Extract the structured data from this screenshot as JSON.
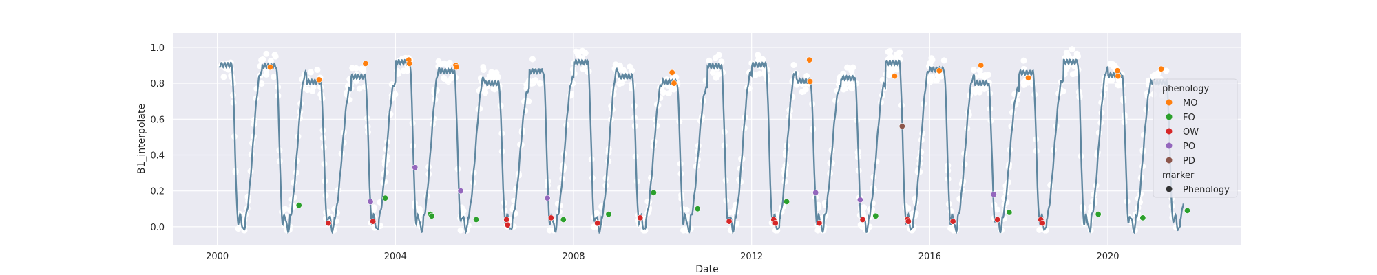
{
  "chart_data": {
    "type": "scatter",
    "title": "",
    "xlabel": "Date",
    "ylabel": "B1_interpolate",
    "xlim": [
      "1999-01-01",
      "2023-01-01"
    ],
    "ylim": [
      -0.1,
      1.08
    ],
    "grid": true,
    "legend_placement": "center-right",
    "x_ticks": [
      "2000",
      "2004",
      "2008",
      "2012",
      "2016",
      "2020"
    ],
    "x_tick_dates": [
      "2000-01-01",
      "2004-01-01",
      "2008-01-01",
      "2012-01-01",
      "2016-01-01",
      "2020-01-01"
    ],
    "y_ticks": [
      "0.0",
      "0.2",
      "0.4",
      "0.6",
      "0.8",
      "1.0"
    ],
    "y_tick_values": [
      0.0,
      0.2,
      0.4,
      0.6,
      0.8,
      1.0
    ],
    "colors": {
      "background": "#eaeaf2",
      "grid": "#ffffff",
      "line": "#5f87a0",
      "raw_points": "#ffffff",
      "MO": "#ff7f0e",
      "FO": "#2ca02c",
      "OW": "#d62728",
      "PO": "#9467bd",
      "PD": "#8c564b"
    },
    "legend": {
      "hue_title": "phenology",
      "hue_entries": [
        "MO",
        "FO",
        "OW",
        "PO",
        "PD"
      ],
      "marker_title": "marker",
      "marker_entries": [
        "Phenology"
      ]
    },
    "series": [
      {
        "name": "MO",
        "points": [
          [
            "2001-03-10",
            0.89
          ],
          [
            "2002-04-15",
            0.82
          ],
          [
            "2003-05-01",
            0.91
          ],
          [
            "2004-04-20",
            0.93
          ],
          [
            "2004-04-25",
            0.91
          ],
          [
            "2005-05-10",
            0.9
          ],
          [
            "2005-05-15",
            0.89
          ],
          [
            "2010-03-20",
            0.86
          ],
          [
            "2010-04-05",
            0.8
          ],
          [
            "2013-04-20",
            0.93
          ],
          [
            "2013-04-25",
            0.81
          ],
          [
            "2015-03-20",
            0.84
          ],
          [
            "2016-03-20",
            0.87
          ],
          [
            "2017-02-25",
            0.9
          ],
          [
            "2018-03-20",
            0.83
          ],
          [
            "2020-03-20",
            0.87
          ],
          [
            "2020-03-25",
            0.84
          ],
          [
            "2021-03-15",
            0.88
          ]
        ]
      },
      {
        "name": "FO",
        "points": [
          [
            "2001-11-01",
            0.12
          ],
          [
            "2003-10-10",
            0.16
          ],
          [
            "2004-10-15",
            0.07
          ],
          [
            "2004-10-25",
            0.06
          ],
          [
            "2005-10-25",
            0.04
          ],
          [
            "2007-10-10",
            0.04
          ],
          [
            "2008-10-15",
            0.07
          ],
          [
            "2009-10-20",
            0.19
          ],
          [
            "2010-10-15",
            0.1
          ],
          [
            "2012-10-15",
            0.14
          ],
          [
            "2014-10-15",
            0.06
          ],
          [
            "2017-10-15",
            0.08
          ],
          [
            "2019-10-15",
            0.07
          ],
          [
            "2020-10-15",
            0.05
          ],
          [
            "2021-10-15",
            0.09
          ]
        ]
      },
      {
        "name": "OW",
        "points": [
          [
            "2002-07-01",
            0.02
          ],
          [
            "2003-07-01",
            0.03
          ],
          [
            "2006-07-01",
            0.04
          ],
          [
            "2006-07-10",
            0.01
          ],
          [
            "2007-07-01",
            0.05
          ],
          [
            "2008-07-15",
            0.02
          ],
          [
            "2009-07-01",
            0.05
          ],
          [
            "2011-07-01",
            0.03
          ],
          [
            "2012-07-01",
            0.04
          ],
          [
            "2012-07-15",
            0.02
          ],
          [
            "2013-07-10",
            0.02
          ],
          [
            "2014-07-01",
            0.04
          ],
          [
            "2015-07-01",
            0.04
          ],
          [
            "2015-07-10",
            0.03
          ],
          [
            "2016-07-10",
            0.03
          ],
          [
            "2017-07-10",
            0.04
          ],
          [
            "2018-07-01",
            0.04
          ],
          [
            "2018-07-15",
            0.02
          ]
        ]
      },
      {
        "name": "PO",
        "points": [
          [
            "2003-06-10",
            0.14
          ],
          [
            "2004-06-10",
            0.33
          ],
          [
            "2005-06-20",
            0.2
          ],
          [
            "2007-06-01",
            0.16
          ],
          [
            "2013-06-10",
            0.19
          ],
          [
            "2014-06-10",
            0.15
          ],
          [
            "2017-06-10",
            0.18
          ]
        ]
      },
      {
        "name": "PD",
        "points": [
          [
            "2015-05-20",
            0.56
          ]
        ]
      }
    ]
  }
}
